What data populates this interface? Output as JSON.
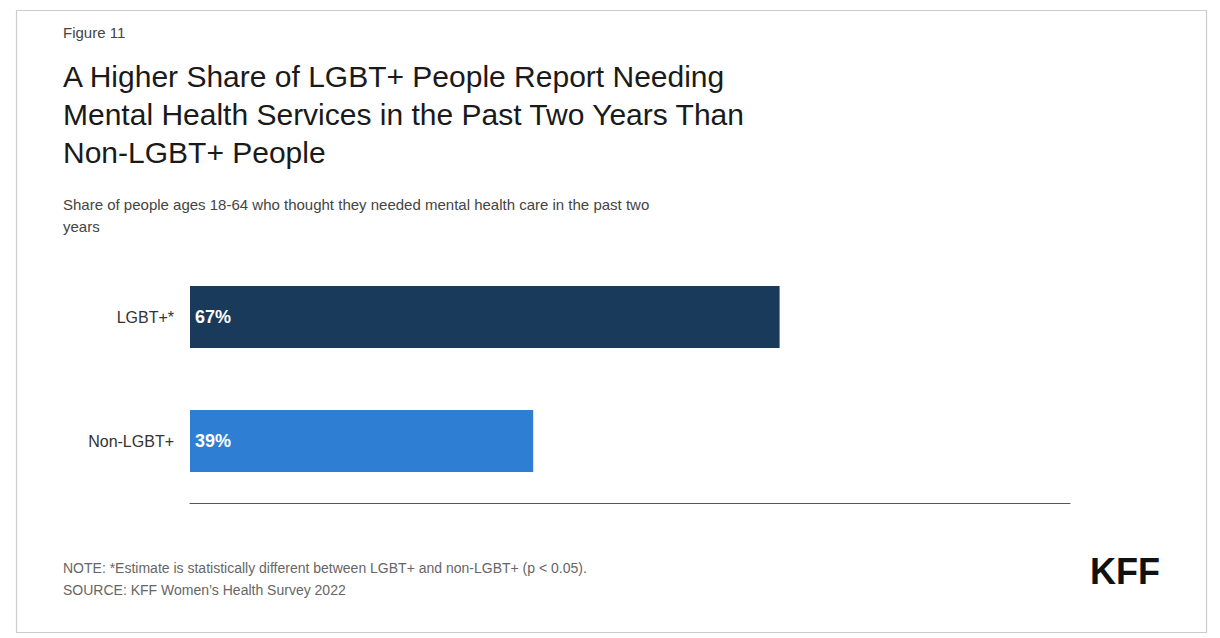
{
  "chart_data": {
    "type": "bar",
    "orientation": "horizontal",
    "title": "A Higher Share of LGBT+ People Report Needing\nMental Health Services in the Past Two Years Than\nNon-LGBT+ People",
    "subtitle": "Share of people ages 18-64 who thought they needed mental health care in the past two\nyears",
    "annotations": [
      "Figure 11",
      "NOTE: *Estimate is statistically different between LGBT+ and non-LGBT+ (p < 0.05).\nSOURCE: KFF Women’s Health Survey 2022",
      "KFF"
    ],
    "categories": [
      "LGBT+*",
      "Non-LGBT+"
    ],
    "values": [
      67,
      39
    ],
    "value_labels": [
      "67%",
      "39%"
    ],
    "data_labels": true,
    "colors": [
      "#1a3a5c",
      "#2e7fd4"
    ],
    "xlim": [
      0,
      100
    ],
    "xticks": [],
    "tick_labels": "y",
    "grid": false
  }
}
